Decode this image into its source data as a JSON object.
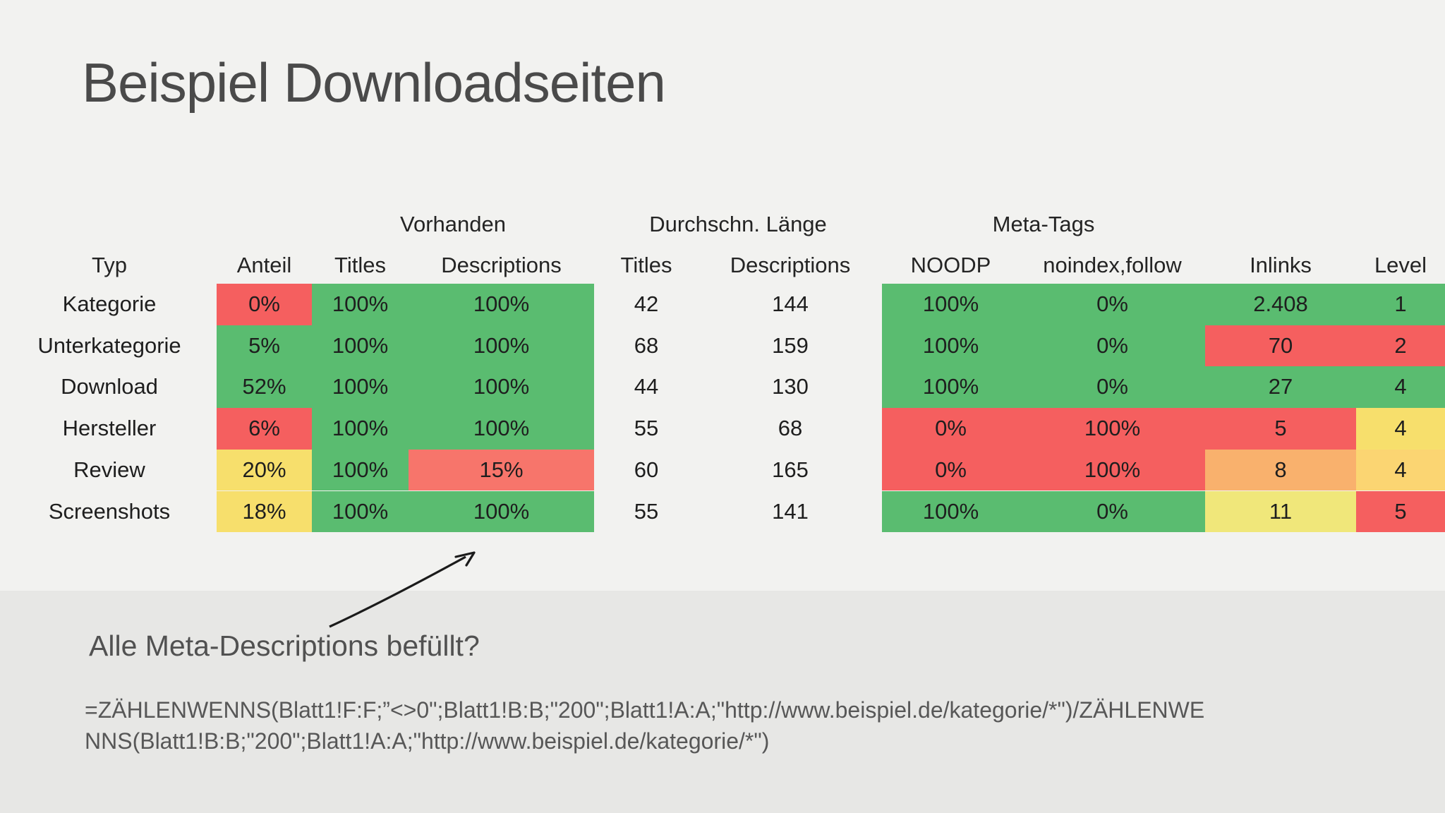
{
  "slide": {
    "title": "Beispiel Downloadseiten",
    "annotation": "Alle Meta-Descriptions befüllt?",
    "formula_line1": "=ZÄHLENWENNS(Blatt1!F:F;”<>0\";Blatt1!B:B;\"200\";Blatt1!A:A;\"http://www.beispiel.de/kategorie/*\")/ZÄHLENWE",
    "formula_line2": "NNS(Blatt1!B:B;\"200\";Blatt1!A:A;\"http://www.beispiel.de/kategorie/*\")"
  },
  "colors": {
    "background": "#f2f2f0",
    "bottom_band": "#e7e7e5",
    "green": "#5abc70",
    "red": "#f55f5f",
    "salmon": "#f7756b",
    "yellow": "#f7df6c",
    "pale_yellow": "#f0e77a",
    "gold": "#fbd572",
    "orange": "#f9b16d",
    "title_text": "#4a4a4a"
  },
  "table": {
    "group_headers": {
      "vorhanden": "Vorhanden",
      "laenge": "Durchschn. Länge",
      "meta_tags": "Meta-Tags"
    },
    "col_headers": [
      "Typ",
      "Anteil",
      "Titles",
      "Descriptions",
      "Titles",
      "Descriptions",
      "NOODP",
      "noindex,follow",
      "Inlinks",
      "Level"
    ],
    "rows": [
      {
        "cells": [
          {
            "v": "Kategorie"
          },
          {
            "v": "0%",
            "c": "red"
          },
          {
            "v": "100%",
            "c": "green"
          },
          {
            "v": "100%",
            "c": "green"
          },
          {
            "v": "42"
          },
          {
            "v": "144"
          },
          {
            "v": "100%",
            "c": "green"
          },
          {
            "v": "0%",
            "c": "green"
          },
          {
            "v": "2.408",
            "c": "green"
          },
          {
            "v": "1",
            "c": "green"
          }
        ]
      },
      {
        "cells": [
          {
            "v": "Unterkategorie"
          },
          {
            "v": "5%",
            "c": "green"
          },
          {
            "v": "100%",
            "c": "green"
          },
          {
            "v": "100%",
            "c": "green"
          },
          {
            "v": "68"
          },
          {
            "v": "159"
          },
          {
            "v": "100%",
            "c": "green"
          },
          {
            "v": "0%",
            "c": "green"
          },
          {
            "v": "70",
            "c": "red"
          },
          {
            "v": "2",
            "c": "red"
          }
        ]
      },
      {
        "cells": [
          {
            "v": "Download"
          },
          {
            "v": "52%",
            "c": "green"
          },
          {
            "v": "100%",
            "c": "green"
          },
          {
            "v": "100%",
            "c": "green"
          },
          {
            "v": "44"
          },
          {
            "v": "130"
          },
          {
            "v": "100%",
            "c": "green"
          },
          {
            "v": "0%",
            "c": "green"
          },
          {
            "v": "27",
            "c": "green"
          },
          {
            "v": "4",
            "c": "green"
          }
        ]
      },
      {
        "cells": [
          {
            "v": "Hersteller"
          },
          {
            "v": "6%",
            "c": "red"
          },
          {
            "v": "100%",
            "c": "green"
          },
          {
            "v": "100%",
            "c": "green"
          },
          {
            "v": "55"
          },
          {
            "v": "68"
          },
          {
            "v": "0%",
            "c": "red"
          },
          {
            "v": "100%",
            "c": "red"
          },
          {
            "v": "5",
            "c": "red"
          },
          {
            "v": "4",
            "c": "yellow"
          }
        ]
      },
      {
        "cells": [
          {
            "v": "Review"
          },
          {
            "v": "20%",
            "c": "yellow"
          },
          {
            "v": "100%",
            "c": "green"
          },
          {
            "v": "15%",
            "c": "salmon"
          },
          {
            "v": "60"
          },
          {
            "v": "165"
          },
          {
            "v": "0%",
            "c": "red"
          },
          {
            "v": "100%",
            "c": "red"
          },
          {
            "v": "8",
            "c": "orange"
          },
          {
            "v": "4",
            "c": "gold"
          }
        ]
      },
      {
        "cells": [
          {
            "v": "Screenshots"
          },
          {
            "v": "18%",
            "c": "yellow"
          },
          {
            "v": "100%",
            "c": "green"
          },
          {
            "v": "100%",
            "c": "green"
          },
          {
            "v": "55"
          },
          {
            "v": "141"
          },
          {
            "v": "100%",
            "c": "green"
          },
          {
            "v": "0%",
            "c": "green"
          },
          {
            "v": "11",
            "c": "paleyellow"
          },
          {
            "v": "5",
            "c": "red"
          }
        ]
      }
    ]
  }
}
